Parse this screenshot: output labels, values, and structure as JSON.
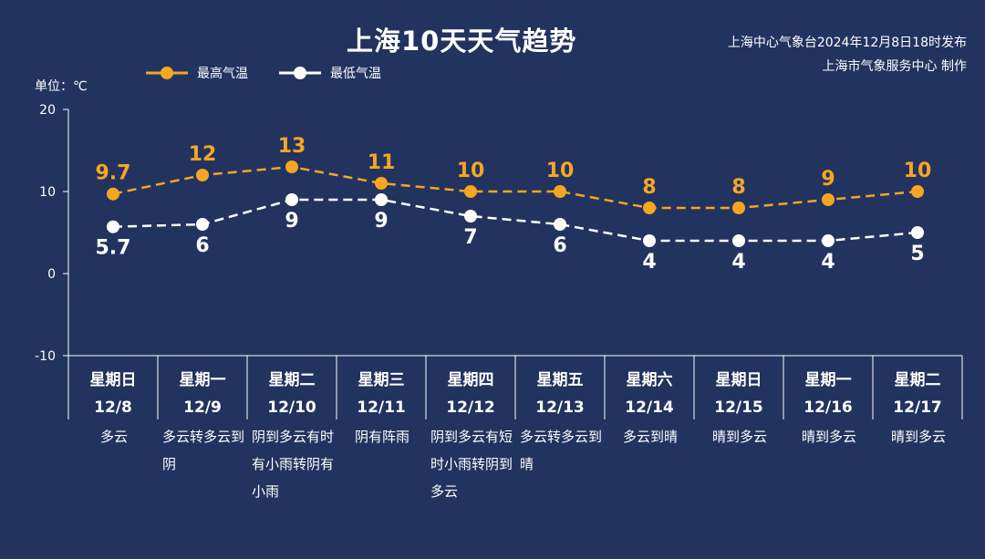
{
  "header": {
    "title": "上海10天天气趋势",
    "source_line1": "上海中心气象台2024年12月8日18时发布",
    "source_line2": "上海市气象服务中心 制作"
  },
  "unit_label": "单位：℃",
  "colors": {
    "background": "#23335f",
    "high": "#f5a623",
    "low": "#ffffff"
  },
  "chart_data": {
    "type": "line",
    "categories": [
      "星期日 12/8",
      "星期一 12/9",
      "星期二 12/10",
      "星期三 12/11",
      "星期四 12/12",
      "星期五 12/13",
      "星期六 12/14",
      "星期日 12/15",
      "星期一 12/16",
      "星期二 12/17"
    ],
    "weekdays": [
      "星期日",
      "星期一",
      "星期二",
      "星期三",
      "星期四",
      "星期五",
      "星期六",
      "星期日",
      "星期一",
      "星期二"
    ],
    "dates": [
      "12/8",
      "12/9",
      "12/10",
      "12/11",
      "12/12",
      "12/13",
      "12/14",
      "12/15",
      "12/16",
      "12/17"
    ],
    "series": [
      {
        "name": "最高气温",
        "values": [
          9.7,
          12,
          13,
          11,
          10,
          10,
          8,
          8,
          9,
          10
        ]
      },
      {
        "name": "最低气温",
        "values": [
          5.7,
          6,
          9,
          9,
          7,
          6,
          4,
          4,
          4,
          5
        ]
      }
    ],
    "ylim": [
      -10,
      20
    ],
    "yticks": [
      20,
      10,
      0,
      -10
    ],
    "legend": "top-left",
    "grid": false
  },
  "weather": [
    "多云",
    "多云转多云到阴",
    "阴到多云有时有小雨转阴有小雨",
    "阴有阵雨",
    "阴到多云有短时小雨转阴到多云",
    "多云转多云到晴",
    "多云到晴",
    "晴到多云",
    "晴到多云",
    "晴到多云"
  ]
}
